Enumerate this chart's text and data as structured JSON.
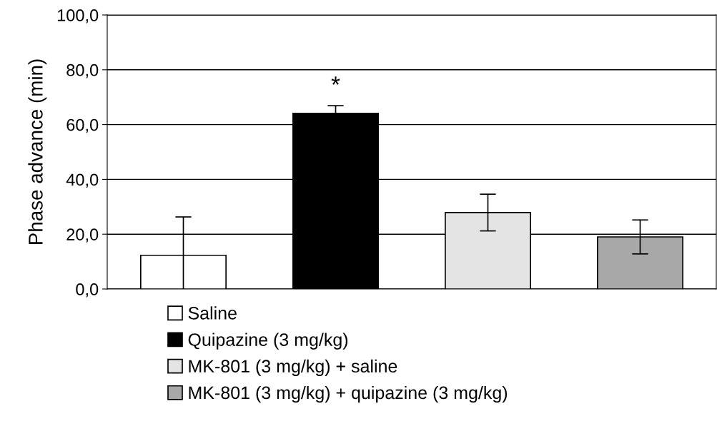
{
  "chart_data": {
    "type": "bar",
    "ylabel": "Phase advance (min)",
    "categories": [
      null,
      null,
      null,
      null
    ],
    "series": [
      {
        "name": "Saline",
        "color": "#ffffff",
        "values": [
          12.3,
          null,
          null,
          null
        ],
        "errors": [
          14.0,
          null,
          null,
          null
        ]
      },
      {
        "name": "Quipazine (3 mg/kg)",
        "color": "#000000",
        "values": [
          null,
          64.1,
          null,
          null
        ],
        "errors": [
          null,
          2.8,
          null,
          null
        ]
      },
      {
        "name": "MK-801 (3 mg/kg) + saline",
        "color": "#e4e4e4",
        "values": [
          null,
          null,
          27.9,
          null
        ],
        "errors": [
          null,
          null,
          6.7,
          null
        ]
      },
      {
        "name": "MK-801 (3 mg/kg) + quipazine (3 mg/kg)",
        "color": "#a8a8a8",
        "values": [
          null,
          null,
          null,
          19.0
        ],
        "errors": [
          null,
          null,
          null,
          6.2
        ]
      }
    ],
    "ylim": [
      0,
      100
    ],
    "yticks": [
      {
        "value": 0,
        "label": "0,0"
      },
      {
        "value": 20,
        "label": "20,0"
      },
      {
        "value": 40,
        "label": "40,0"
      },
      {
        "value": 60,
        "label": "60,0"
      },
      {
        "value": 80,
        "label": "80,0"
      },
      {
        "value": 100,
        "label": "100,0"
      }
    ],
    "annotations": [
      "*"
    ],
    "grid": "y",
    "legend": "bottom"
  }
}
